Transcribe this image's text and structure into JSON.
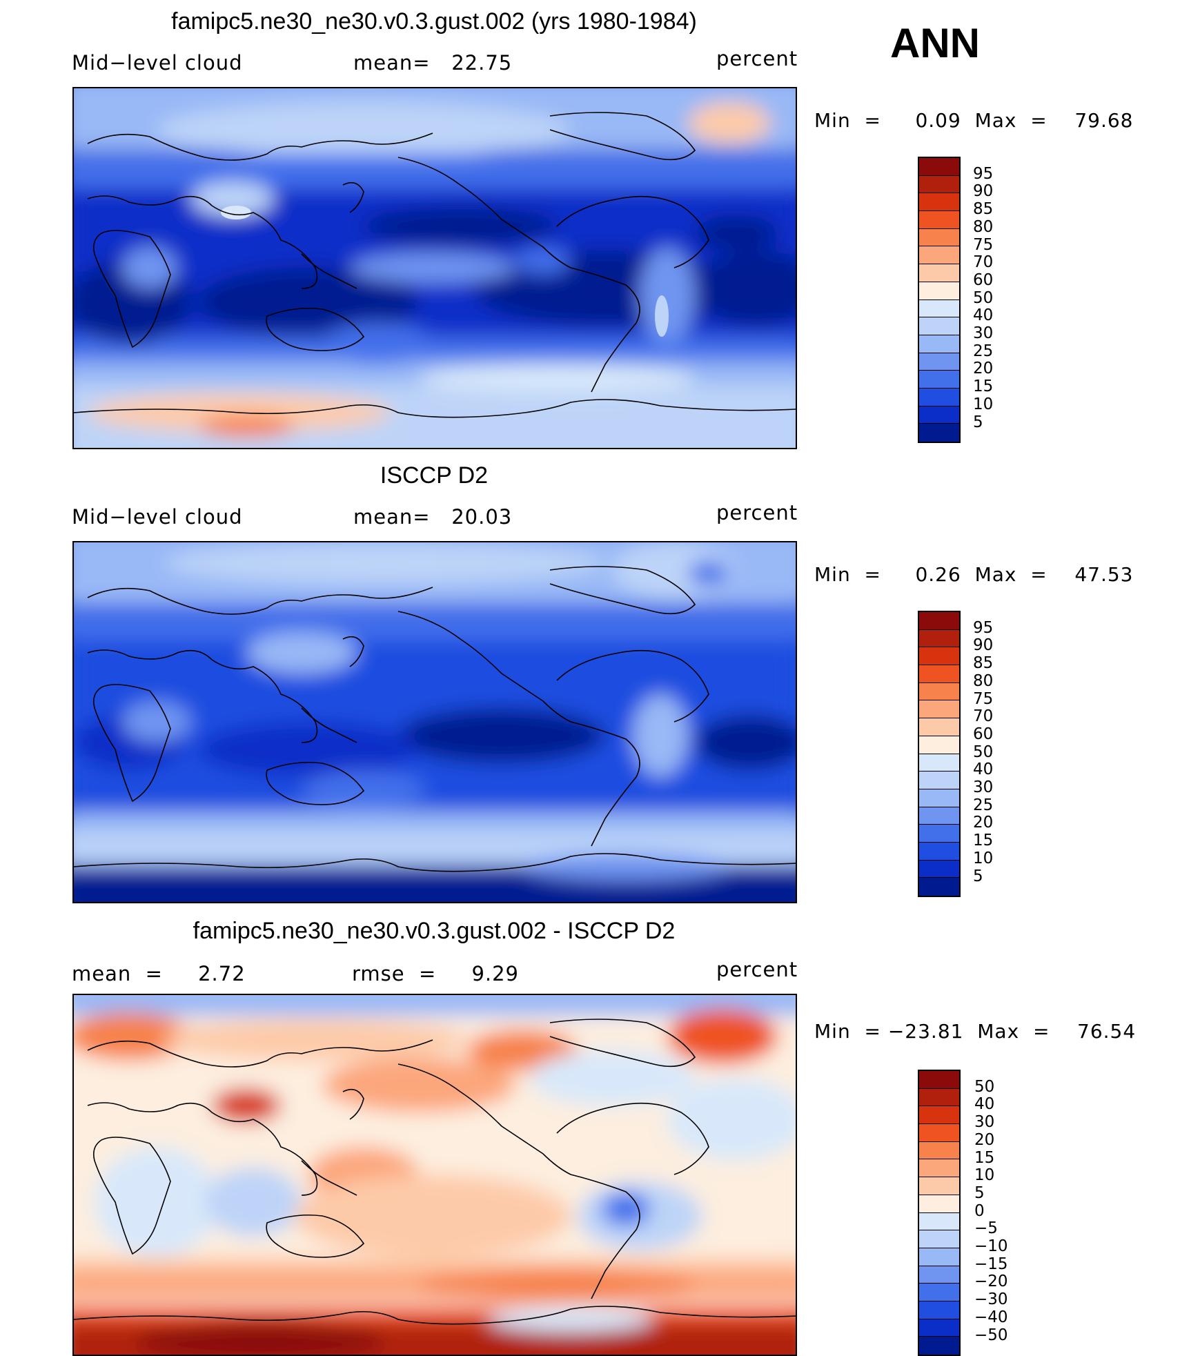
{
  "main_title": "ANN",
  "panels": [
    {
      "title": "famipc5.ne30_ne30.v0.3.gust.002 (yrs 1980-1984)",
      "left_label": "Mid−level cloud",
      "center_label": "mean=   22.75",
      "right_label": "percent",
      "minmax": "Min  =     0.09  Max  =    79.68",
      "colorbar_labels": [
        "95",
        "90",
        "85",
        "80",
        "75",
        "70",
        "60",
        "50",
        "40",
        "30",
        "25",
        "20",
        "15",
        "10",
        "5"
      ],
      "colorbar_colors": [
        "#8b0a0a",
        "#b0200c",
        "#d8330f",
        "#ef5322",
        "#f7824c",
        "#fca67c",
        "#fdcaa9",
        "#fdeedf",
        "#d8e8fa",
        "#bdd4f8",
        "#98b8f6",
        "#6f95f1",
        "#4270eb",
        "#1f4ee0",
        "#0c2ec8",
        "#001a90"
      ],
      "field_colors": {
        "base": "#0c2ec8",
        "deep": "#001a90",
        "mid": "#1f4ee0",
        "light": "#6f95f1",
        "pale": "#bdd4f8",
        "white": "#d8e8fa",
        "warm": "#fdcaa9",
        "hot": "#f7824c"
      }
    },
    {
      "title": "ISCCP D2",
      "left_label": "Mid−level cloud",
      "center_label": "mean=   20.03",
      "right_label": "percent",
      "minmax": "Min  =     0.26  Max  =    47.53",
      "colorbar_labels": [
        "95",
        "90",
        "85",
        "80",
        "75",
        "70",
        "60",
        "50",
        "40",
        "30",
        "25",
        "20",
        "15",
        "10",
        "5"
      ],
      "colorbar_colors": [
        "#8b0a0a",
        "#b0200c",
        "#d8330f",
        "#ef5322",
        "#f7824c",
        "#fca67c",
        "#fdcaa9",
        "#fdeedf",
        "#d8e8fa",
        "#bdd4f8",
        "#98b8f6",
        "#6f95f1",
        "#4270eb",
        "#1f4ee0",
        "#0c2ec8",
        "#001a90"
      ]
    },
    {
      "title": "famipc5.ne30_ne30.v0.3.gust.002 - ISCCP D2",
      "left_label": "mean  =     2.72",
      "center_label": "rmse  =     9.29",
      "right_label": "percent",
      "minmax": "Min  = −23.81  Max  =    76.54",
      "colorbar_labels": [
        "50",
        "40",
        "30",
        "20",
        "15",
        "10",
        "5",
        "0",
        "−5",
        "−10",
        "−15",
        "−20",
        "−30",
        "−40",
        "−50"
      ],
      "colorbar_colors": [
        "#8b0a0a",
        "#b0200c",
        "#d8330f",
        "#ef5322",
        "#f7824c",
        "#fca67c",
        "#fdcaa9",
        "#fdeedf",
        "#d8e8fa",
        "#bdd4f8",
        "#98b8f6",
        "#6f95f1",
        "#4270eb",
        "#1f4ee0",
        "#0c2ec8",
        "#001a90"
      ]
    }
  ]
}
